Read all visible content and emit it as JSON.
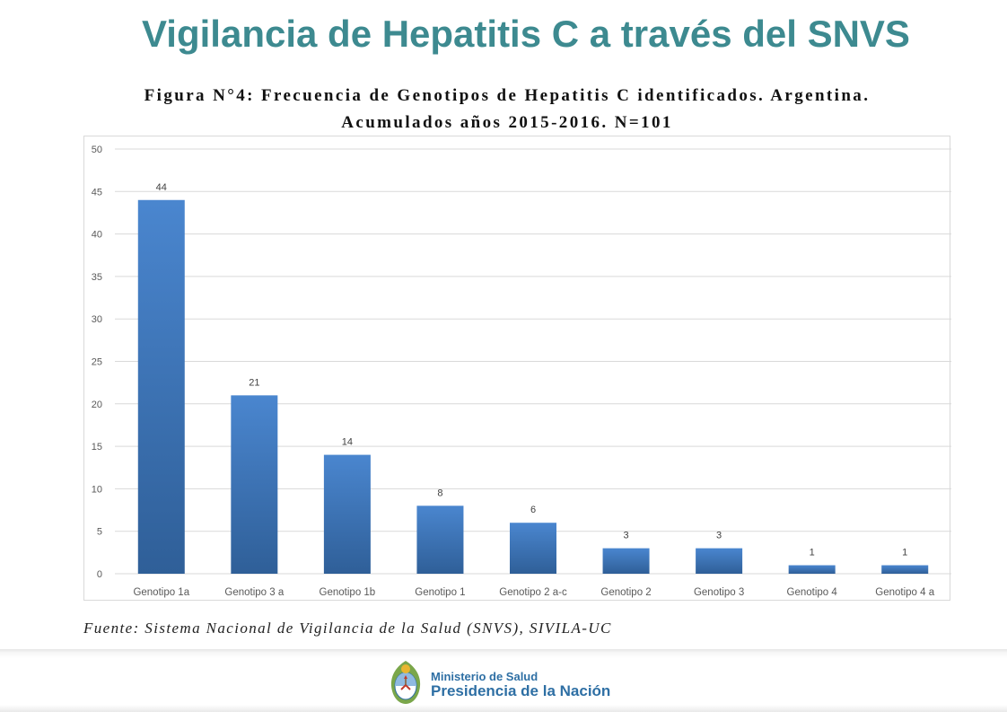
{
  "slide": {
    "title": "Vigilancia de Hepatitis C a través del SNVS"
  },
  "figure": {
    "caption_line1": "Figura N°4: Frecuencia de Genotipos de Hepatitis C identificados. Argentina.",
    "caption_line2": "Acumulados años 2015-2016. N=101",
    "source": "Fuente: Sistema Nacional de Vigilancia de la Salud (SNVS), SIVILA-UC"
  },
  "footer": {
    "ministry": "Ministerio de Salud",
    "presidency": "Presidencia de la Nación"
  },
  "colors": {
    "title": "#3d8a90",
    "bar_top": "#4a86cf",
    "bar_bottom": "#2f5f98",
    "gridline": "#d9d9d9",
    "axis_text": "#595959",
    "footer_text": "#2e6fa4"
  },
  "chart_data": {
    "type": "bar",
    "categories": [
      "Genotipo 1a",
      "Genotipo 3 a",
      "Genotipo 1b",
      "Genotipo 1",
      "Genotipo 2 a-c",
      "Genotipo 2",
      "Genotipo 3",
      "Genotipo 4",
      "Genotipo 4 a"
    ],
    "values": [
      44,
      21,
      14,
      8,
      6,
      3,
      3,
      1,
      1
    ],
    "data_labels": [
      "44",
      "21",
      "14",
      "8",
      "6",
      "3",
      "3",
      "1",
      "1"
    ],
    "ylim": [
      0,
      50
    ],
    "yticks": [
      0,
      5,
      10,
      15,
      20,
      25,
      30,
      35,
      40,
      45,
      50
    ],
    "ytick_labels": [
      "0",
      "5",
      "10",
      "15",
      "20",
      "25",
      "30",
      "35",
      "40",
      "45",
      "50"
    ],
    "grid": true,
    "legend": "none",
    "title": "Figura N°4: Frecuencia de Genotipos de Hepatitis C identificados. Argentina. Acumulados años 2015-2016. N=101",
    "xlabel": "",
    "ylabel": ""
  }
}
